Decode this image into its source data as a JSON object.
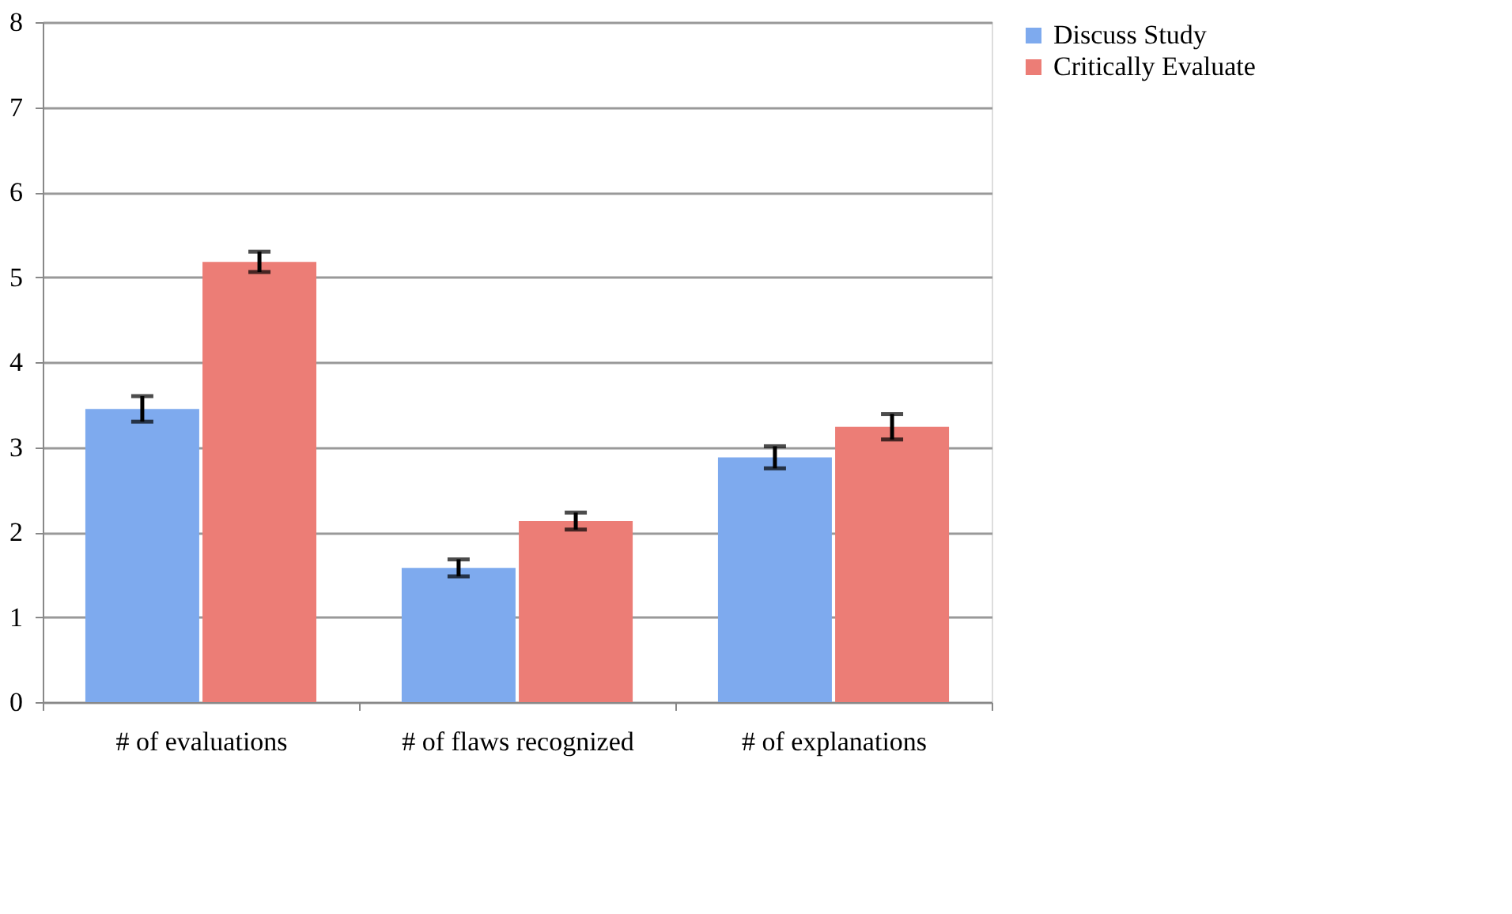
{
  "chart_data": {
    "type": "bar",
    "categories": [
      "# of evaluations",
      "# of flaws recognized",
      "# of explanations"
    ],
    "series": [
      {
        "name": "Discuss Study",
        "color": "#7eaaee",
        "values": [
          3.45,
          1.58,
          2.88
        ],
        "errors": [
          0.15,
          0.1,
          0.13
        ]
      },
      {
        "name": "Critically Evaluate",
        "color": "#ec7d76",
        "values": [
          5.18,
          2.13,
          3.24
        ],
        "errors": [
          0.12,
          0.1,
          0.15
        ]
      }
    ],
    "ylim": [
      0,
      8
    ],
    "yticks": [
      0,
      1,
      2,
      3,
      4,
      5,
      6,
      7,
      8
    ],
    "grid": "y",
    "legend": "right"
  }
}
